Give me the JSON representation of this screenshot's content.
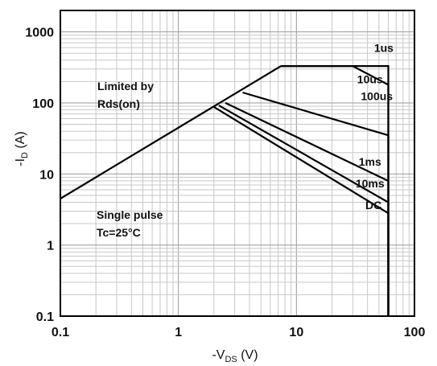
{
  "chart_data": {
    "type": "line",
    "title": "",
    "x_scale": "log",
    "y_scale": "log",
    "xlim": [
      0.1,
      100
    ],
    "ylim": [
      0.1,
      2000
    ],
    "grid": true,
    "x_tick_labels": [
      "0.1",
      "1",
      "10",
      "100"
    ],
    "x_tick_values": [
      0.1,
      1,
      10,
      100
    ],
    "y_tick_labels": [
      "0.1",
      "1",
      "10",
      "100",
      "1000"
    ],
    "y_tick_values": [
      0.1,
      1,
      10,
      100,
      1000
    ],
    "xlabel": {
      "prefix": "-V",
      "sub": "DS",
      "suffix": " (V)"
    },
    "ylabel": {
      "prefix": "-I",
      "sub": "D",
      "suffix": " (A)"
    },
    "limit_line": {
      "x": [
        0.1,
        7.4
      ],
      "y": [
        4.5,
        330
      ]
    },
    "series": [
      {
        "name": "1us",
        "x": [
          7.4,
          60,
          60
        ],
        "y": [
          330,
          330,
          0.1
        ],
        "label_at": [
          55,
          520
        ]
      },
      {
        "name": "10us",
        "x": [
          7.4,
          30,
          60,
          60
        ],
        "y": [
          330,
          330,
          180,
          0.1
        ],
        "label_at": [
          42,
          190
        ]
      },
      {
        "name": "100us",
        "x": [
          3.5,
          60,
          60
        ],
        "y": [
          140,
          35,
          0.1
        ],
        "label_at": [
          48,
          110
        ]
      },
      {
        "name": "1ms",
        "x": [
          2.5,
          60,
          60
        ],
        "y": [
          100,
          8,
          0.1
        ],
        "label_at": [
          42,
          13
        ]
      },
      {
        "name": "10ms",
        "x": [
          2.2,
          60,
          60
        ],
        "y": [
          92,
          4,
          0.1
        ],
        "label_at": [
          42,
          6.5
        ]
      },
      {
        "name": "DC",
        "x": [
          2.0,
          60,
          60
        ],
        "y": [
          88,
          2.8,
          0.1
        ],
        "label_at": [
          45,
          3.2
        ]
      }
    ],
    "annotations": [
      {
        "lines": [
          "Limited by",
          "Rds(on)"
        ]
      },
      {
        "lines": [
          "Single pulse",
          "Tc=25°C"
        ]
      }
    ]
  }
}
